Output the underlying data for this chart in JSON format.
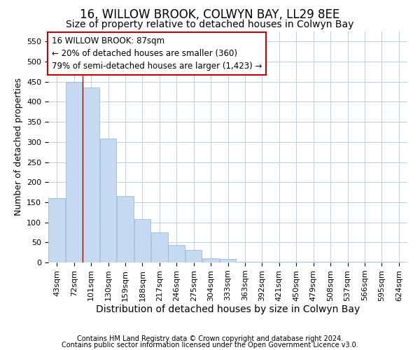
{
  "title": "16, WILLOW BROOK, COLWYN BAY, LL29 8EE",
  "subtitle": "Size of property relative to detached houses in Colwyn Bay",
  "xlabel": "Distribution of detached houses by size in Colwyn Bay",
  "ylabel": "Number of detached properties",
  "footnote1": "Contains HM Land Registry data © Crown copyright and database right 2024.",
  "footnote2": "Contains public sector information licensed under the Open Government Licence v3.0.",
  "categories": [
    "43sqm",
    "72sqm",
    "101sqm",
    "130sqm",
    "159sqm",
    "188sqm",
    "217sqm",
    "246sqm",
    "275sqm",
    "304sqm",
    "333sqm",
    "363sqm",
    "392sqm",
    "421sqm",
    "450sqm",
    "479sqm",
    "508sqm",
    "537sqm",
    "566sqm",
    "595sqm",
    "624sqm"
  ],
  "values": [
    160,
    450,
    435,
    308,
    165,
    108,
    75,
    43,
    32,
    10,
    8,
    2,
    2,
    2,
    2,
    2,
    2,
    2,
    2,
    2,
    2
  ],
  "bar_color": "#c5d9f0",
  "bar_edge_color": "#8ab4d8",
  "annotation_line1": "16 WILLOW BROOK: 87sqm",
  "annotation_line2": "← 20% of detached houses are smaller (360)",
  "annotation_line3": "79% of semi-detached houses are larger (1,423) →",
  "annotation_box_color": "#ffffff",
  "annotation_box_edge_color": "#cc0000",
  "vline_color": "#cc0000",
  "vline_x": 1.5,
  "ylim": [
    0,
    575
  ],
  "yticks": [
    0,
    50,
    100,
    150,
    200,
    250,
    300,
    350,
    400,
    450,
    500,
    550
  ],
  "background_color": "#ffffff",
  "grid_color": "#c0cfe0",
  "title_fontsize": 12,
  "subtitle_fontsize": 10,
  "tick_fontsize": 8,
  "xlabel_fontsize": 10,
  "ylabel_fontsize": 9,
  "footnote_fontsize": 7
}
